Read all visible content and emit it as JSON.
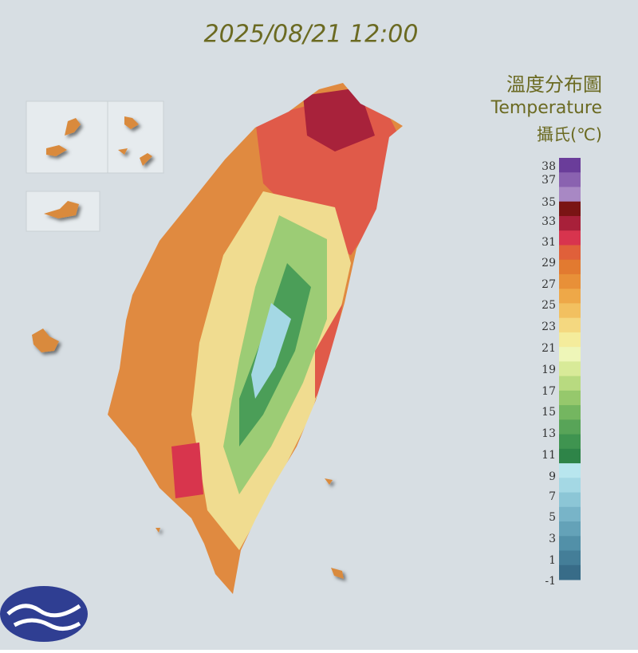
{
  "timestamp": "2025/08/21 12:00",
  "legend": {
    "title": "溫度分布圖",
    "subtitle": "Temperature",
    "unit": "攝氏(℃)",
    "labels": [
      38,
      37,
      35,
      33,
      31,
      29,
      27,
      25,
      23,
      21,
      19,
      17,
      15,
      13,
      11,
      9,
      7,
      5,
      3,
      1,
      -1
    ],
    "colors": [
      "#6a3d9a",
      "#8a62b0",
      "#a888c4",
      "#7a1414",
      "#a8203a",
      "#d8344e",
      "#e0603a",
      "#e27a30",
      "#e89038",
      "#eea848",
      "#f2c060",
      "#f4d880",
      "#f4ec9c",
      "#eef6b8",
      "#d8ea98",
      "#b8da80",
      "#96c86c",
      "#74b660",
      "#58a458",
      "#3f9450",
      "#2e8448",
      "#b8e6ee",
      "#a4d8e4",
      "#8cc6d6",
      "#78b4c8",
      "#64a2b8",
      "#5290a8",
      "#447e98",
      "#386c88"
    ]
  }
}
